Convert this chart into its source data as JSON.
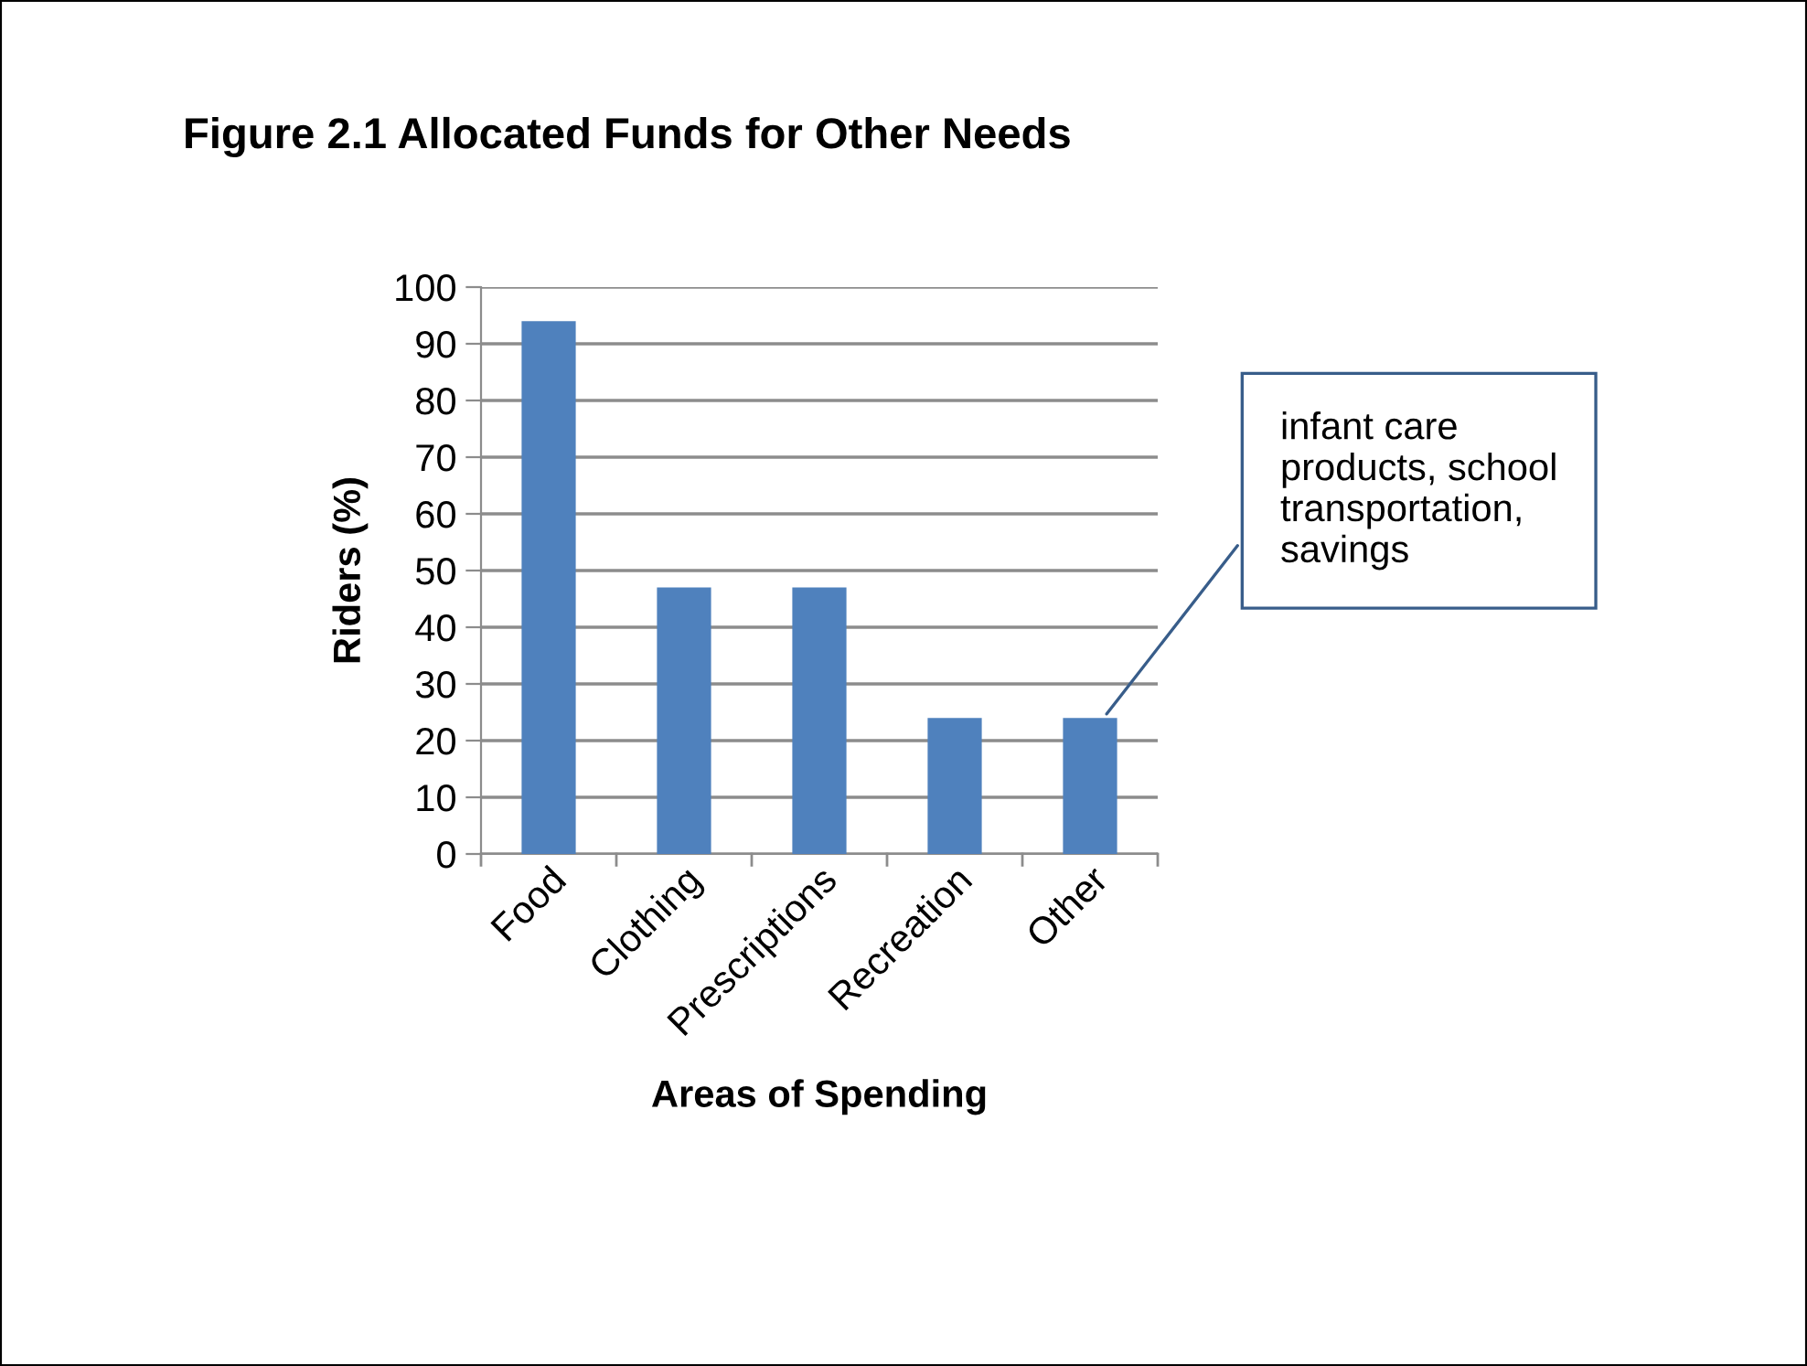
{
  "chart_data": {
    "type": "bar",
    "title": "Figure 2.1 Allocated Funds for Other Needs",
    "xlabel": "Areas of Spending",
    "ylabel": "Riders (%)",
    "categories": [
      "Food",
      "Clothing",
      "Prescriptions",
      "Recreation",
      "Other"
    ],
    "values": [
      94,
      47,
      47,
      24,
      24
    ],
    "color": "#4f81bd",
    "ylim": [
      0,
      100
    ],
    "yticks": [
      0,
      10,
      20,
      30,
      40,
      50,
      60,
      70,
      80,
      90,
      100
    ],
    "grid": "y",
    "annotations": [
      {
        "text": "infant care\nproducts, school\ntransportation,\nsavings",
        "x": "Other",
        "y": 24
      }
    ]
  }
}
